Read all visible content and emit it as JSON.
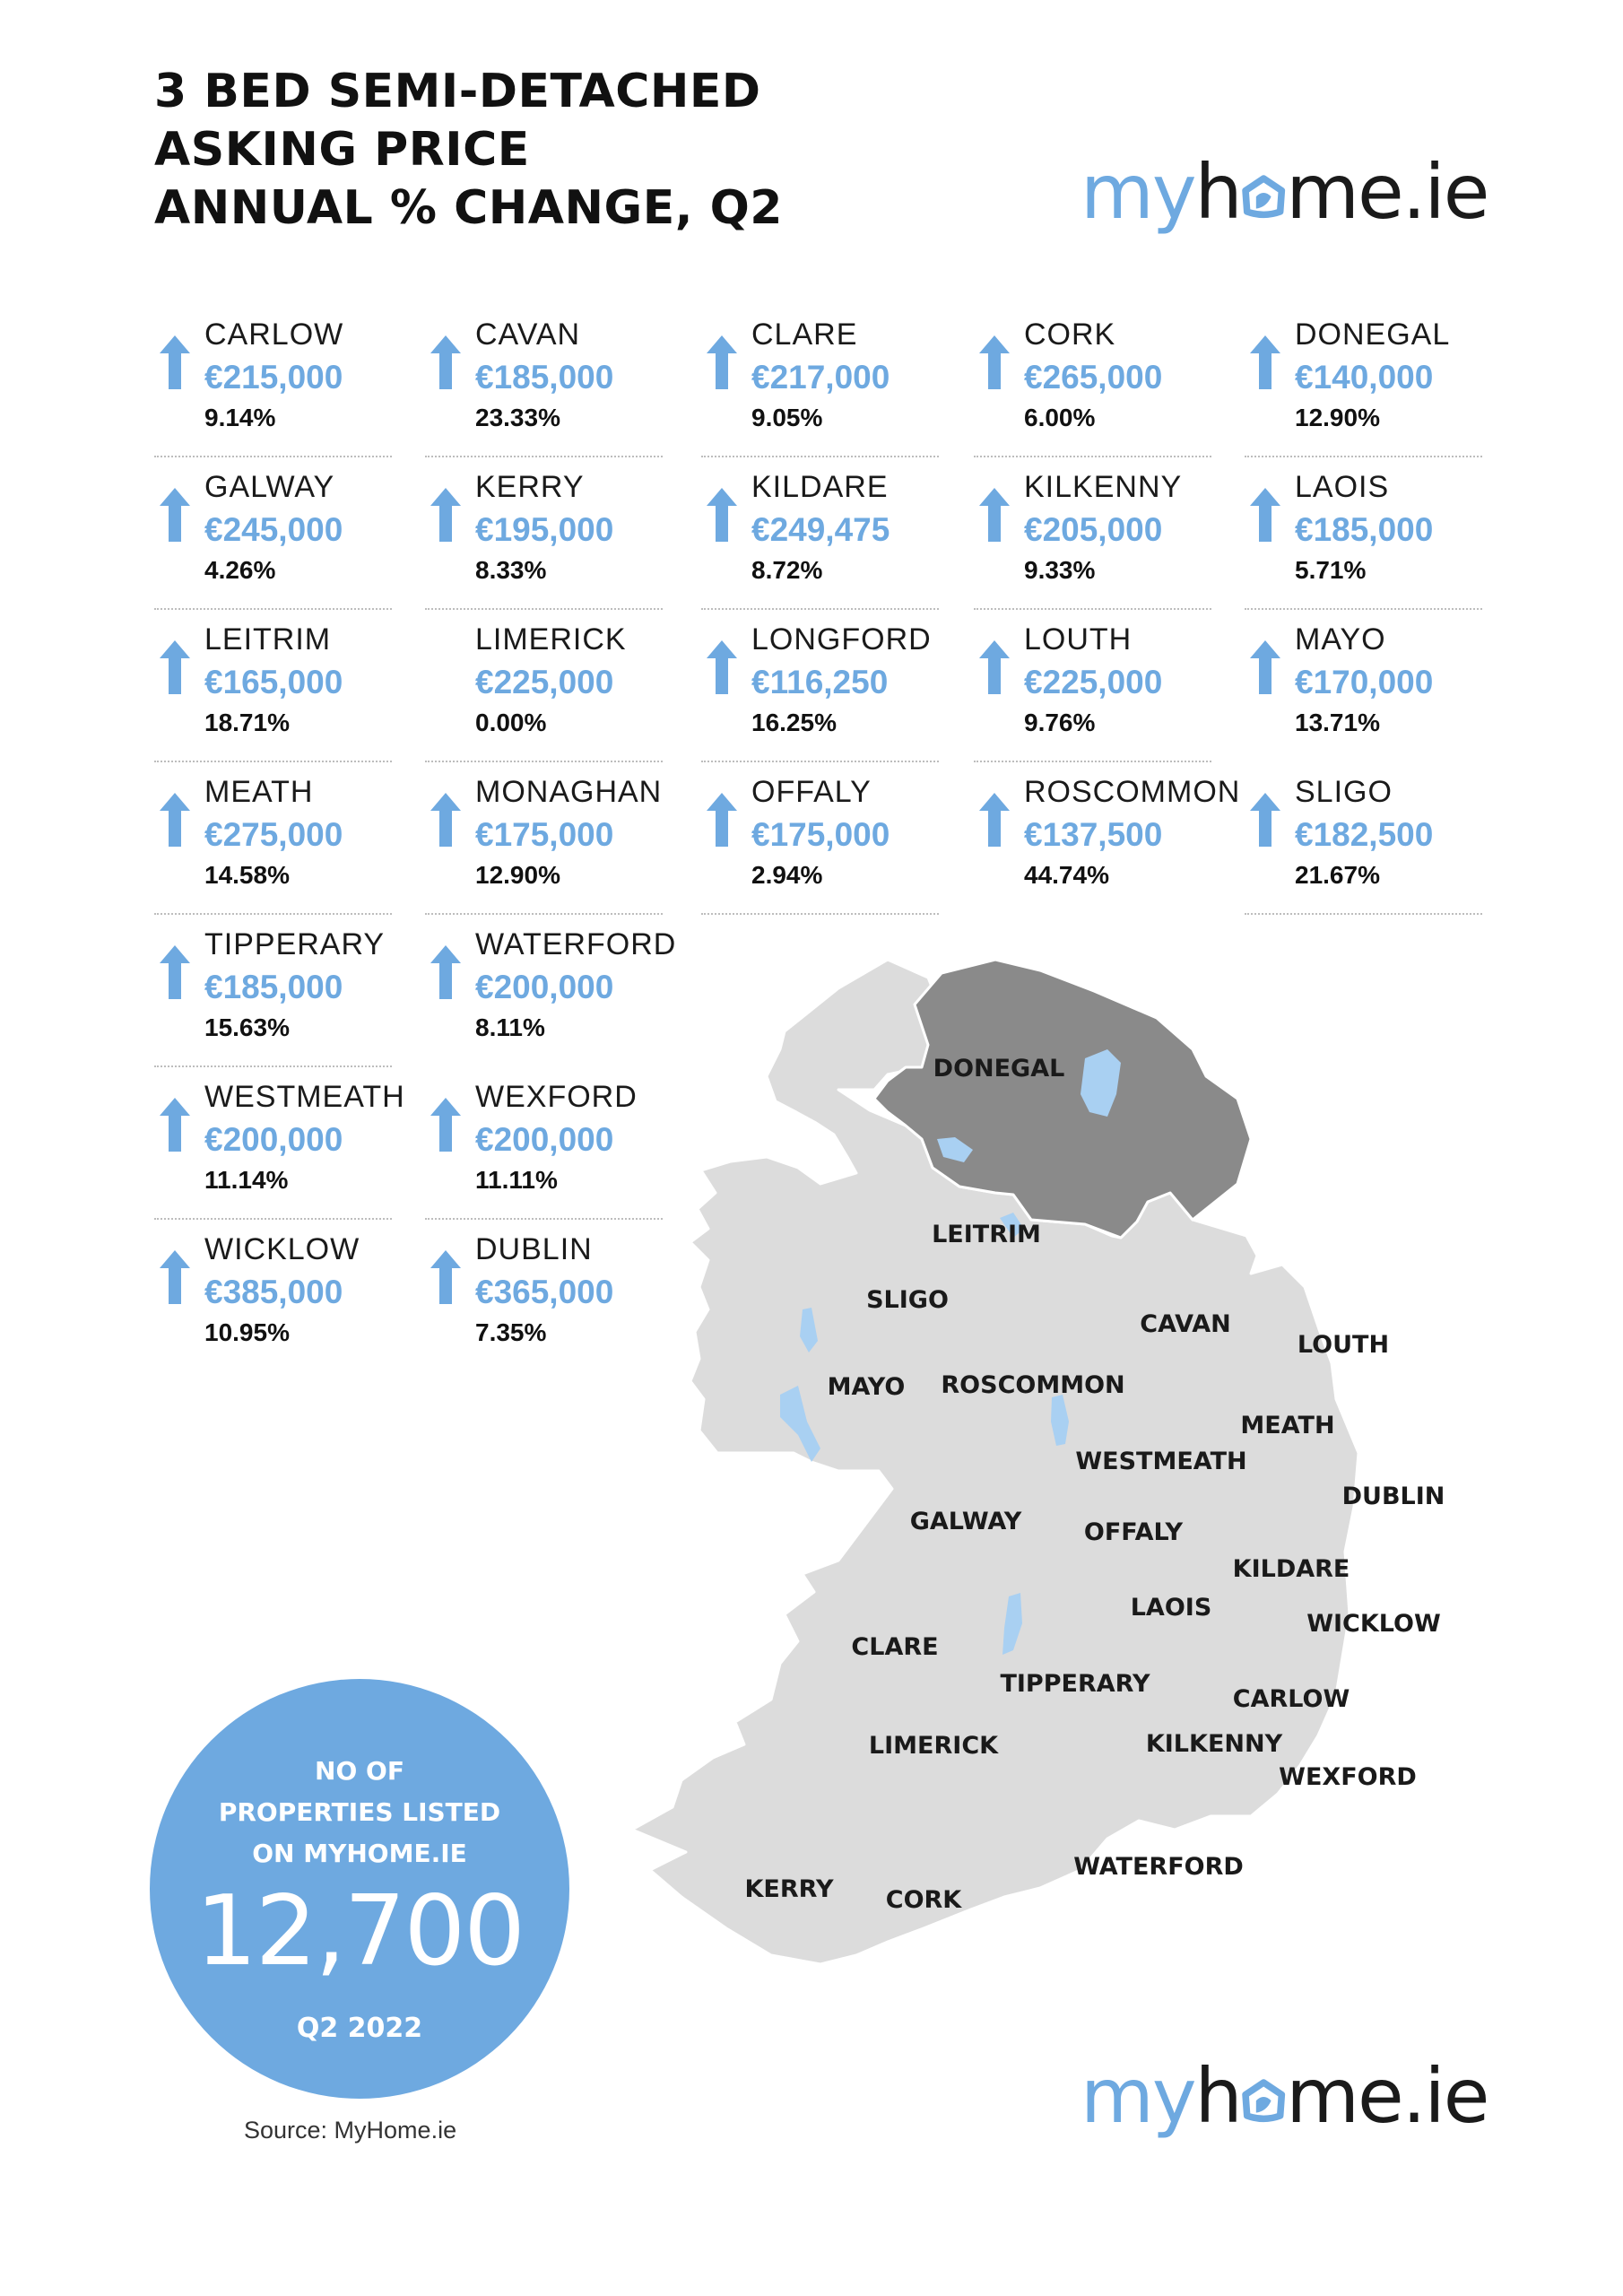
{
  "title_lines": [
    "3 BED SEMI-DETACHED",
    "ASKING PRICE",
    "ANNUAL % CHANGE, Q2"
  ],
  "logo": {
    "part1": "my",
    "part2": "h",
    "part3": "me.ie"
  },
  "colors": {
    "accent": "#6ea9e0",
    "text": "#111111",
    "map_fill": "#dcdcdc",
    "ni_fill": "#8a8a8a",
    "water": "#a9d0f2"
  },
  "counties": [
    {
      "name": "CARLOW",
      "price": "€215,000",
      "change": "9.14%",
      "trend": "up"
    },
    {
      "name": "CAVAN",
      "price": "€185,000",
      "change": "23.33%",
      "trend": "up"
    },
    {
      "name": "CLARE",
      "price": "€217,000",
      "change": "9.05%",
      "trend": "up"
    },
    {
      "name": "CORK",
      "price": "€265,000",
      "change": "6.00%",
      "trend": "up"
    },
    {
      "name": "DONEGAL",
      "price": "€140,000",
      "change": "12.90%",
      "trend": "up"
    },
    {
      "name": "GALWAY",
      "price": "€245,000",
      "change": "4.26%",
      "trend": "up"
    },
    {
      "name": "KERRY",
      "price": "€195,000",
      "change": "8.33%",
      "trend": "up"
    },
    {
      "name": "KILDARE",
      "price": "€249,475",
      "change": "8.72%",
      "trend": "up"
    },
    {
      "name": "KILKENNY",
      "price": "€205,000",
      "change": "9.33%",
      "trend": "up"
    },
    {
      "name": "LAOIS",
      "price": "€185,000",
      "change": "5.71%",
      "trend": "up"
    },
    {
      "name": "LEITRIM",
      "price": "€165,000",
      "change": "18.71%",
      "trend": "up"
    },
    {
      "name": "LIMERICK",
      "price": "€225,000",
      "change": "0.00%",
      "trend": "none"
    },
    {
      "name": "LONGFORD",
      "price": "€116,250",
      "change": "16.25%",
      "trend": "up"
    },
    {
      "name": "LOUTH",
      "price": "€225,000",
      "change": "9.76%",
      "trend": "up"
    },
    {
      "name": "MAYO",
      "price": "€170,000",
      "change": "13.71%",
      "trend": "up"
    },
    {
      "name": "MEATH",
      "price": "€275,000",
      "change": "14.58%",
      "trend": "up"
    },
    {
      "name": "MONAGHAN",
      "price": "€175,000",
      "change": "12.90%",
      "trend": "up"
    },
    {
      "name": "OFFALY",
      "price": "€175,000",
      "change": "2.94%",
      "trend": "up"
    },
    {
      "name": "ROSCOMMON",
      "price": "€137,500",
      "change": "44.74%",
      "trend": "up"
    },
    {
      "name": "SLIGO",
      "price": "€182,500",
      "change": "21.67%",
      "trend": "up"
    },
    {
      "name": "TIPPERARY",
      "price": "€185,000",
      "change": "15.63%",
      "trend": "up"
    },
    {
      "name": "WATERFORD",
      "price": "€200,000",
      "change": "8.11%",
      "trend": "up"
    },
    {
      "name": "WESTMEATH",
      "price": "€200,000",
      "change": "11.14%",
      "trend": "up"
    },
    {
      "name": "WEXFORD",
      "price": "€200,000",
      "change": "11.11%",
      "trend": "up"
    },
    {
      "name": "WICKLOW",
      "price": "€385,000",
      "change": "10.95%",
      "trend": "up"
    },
    {
      "name": "DUBLIN",
      "price": "€365,000",
      "change": "7.35%",
      "trend": "up"
    }
  ],
  "map_labels": {
    "donegal": "DONEGAL",
    "leitrim": "LEITRIM",
    "sligo": "SLIGO",
    "cavan": "CAVAN",
    "louth": "LOUTH",
    "mayo": "MAYO",
    "roscommon": "ROSCOMMON",
    "meath": "MEATH",
    "westmeath": "WESTMEATH",
    "dublin": "DUBLIN",
    "galway": "GALWAY",
    "offaly": "OFFALY",
    "kildare": "KILDARE",
    "laois": "LAOIS",
    "wicklow": "WICKLOW",
    "clare": "CLARE",
    "tipperary": "TIPPERARY",
    "carlow": "CARLOW",
    "limerick": "LIMERICK",
    "kilkenny": "KILKENNY",
    "wexford": "WEXFORD",
    "waterford": "WATERFORD",
    "kerry": "KERRY",
    "cork": "CORK"
  },
  "listings": {
    "label_lines": [
      "NO OF",
      "PROPERTIES LISTED",
      "ON MYHOME.IE"
    ],
    "count": "12,700",
    "period": "Q2 2022"
  },
  "source": "Source: MyHome.ie"
}
